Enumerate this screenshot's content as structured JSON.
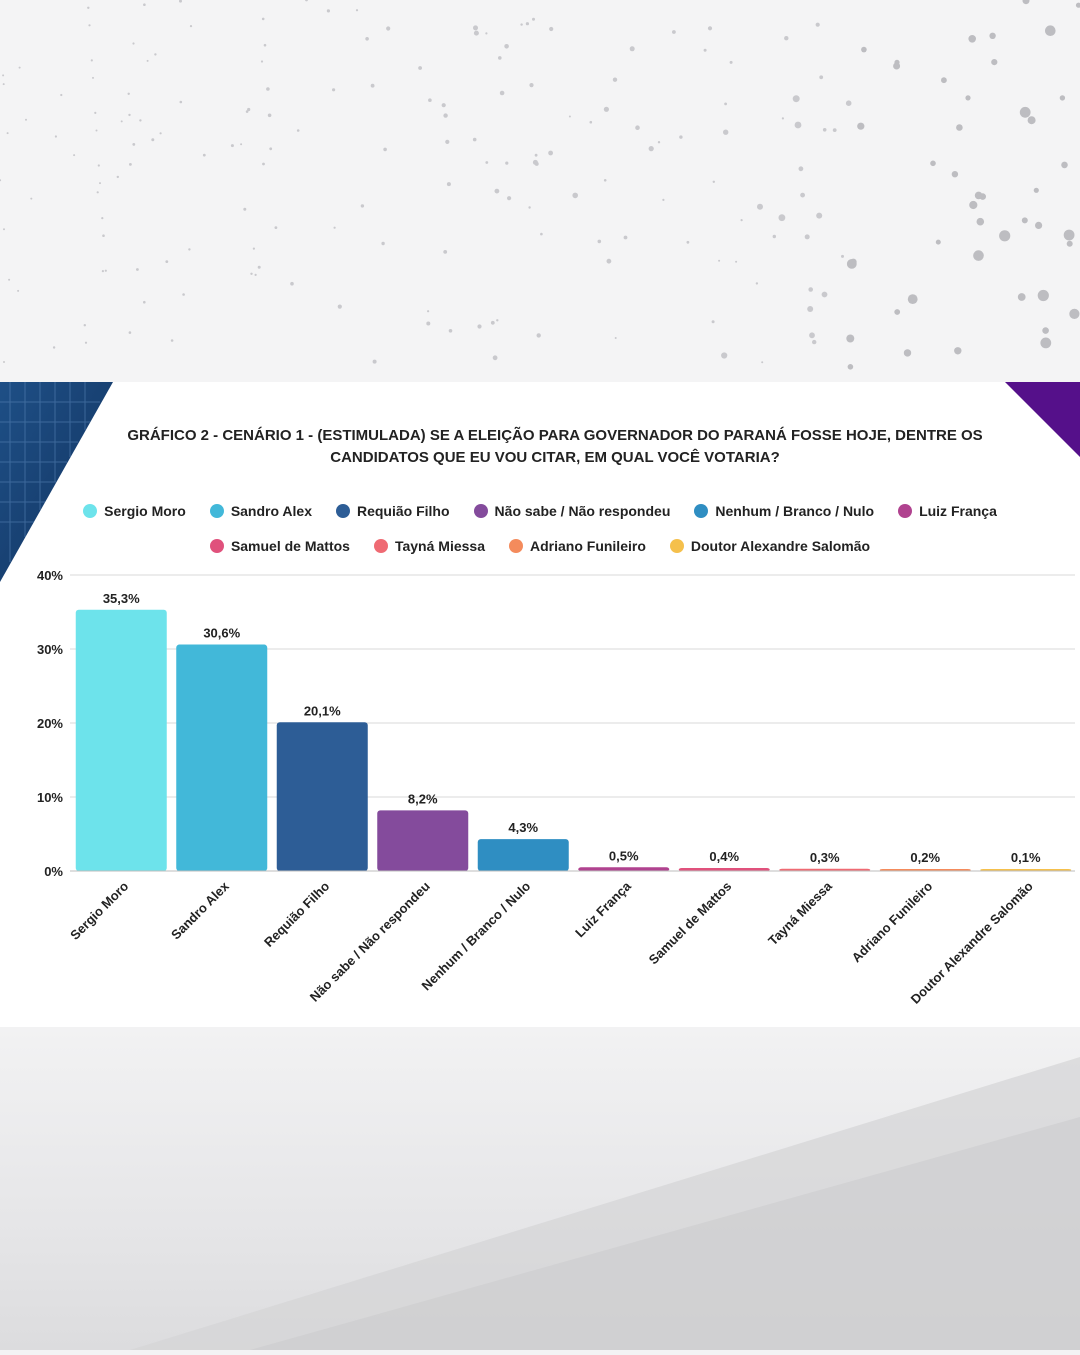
{
  "chart_data": {
    "type": "bar",
    "title": "GRÁFICO 2 - CENÁRIO 1 - (ESTIMULADA) SE A ELEIÇÃO PARA GOVERNADOR DO PARANÁ FOSSE HOJE, DENTRE OS CANDIDATOS QUE EU VOU CITAR, EM QUAL VOCÊ VOTARIA?",
    "categories": [
      "Sergio Moro",
      "Sandro Alex",
      "Requião Filho",
      "Não sabe / Não respondeu",
      "Nenhum / Branco / Nulo",
      "Luiz França",
      "Samuel de Mattos",
      "Tayná Miessa",
      "Adriano Funileiro",
      "Doutor Alexandre Salomão"
    ],
    "values": [
      35.3,
      30.6,
      20.1,
      8.2,
      4.3,
      0.5,
      0.4,
      0.3,
      0.2,
      0.1
    ],
    "value_labels": [
      "35,3%",
      "30,6%",
      "20,1%",
      "8,2%",
      "4,3%",
      "0,5%",
      "0,4%",
      "0,3%",
      "0,2%",
      "0,1%"
    ],
    "colors": [
      "#6de3eb",
      "#42b8d9",
      "#2d5d96",
      "#844b9c",
      "#2f8ec2",
      "#b0428f",
      "#e0517c",
      "#ef6a73",
      "#f48b5c",
      "#f5c04c"
    ],
    "yticks": [
      0,
      10,
      20,
      30,
      40
    ],
    "ytick_labels": [
      "0%",
      "10%",
      "20%",
      "30%",
      "40%"
    ],
    "ylim": [
      0,
      40
    ],
    "grid": true,
    "legend_position": "top",
    "xlabel": "",
    "ylabel": ""
  }
}
